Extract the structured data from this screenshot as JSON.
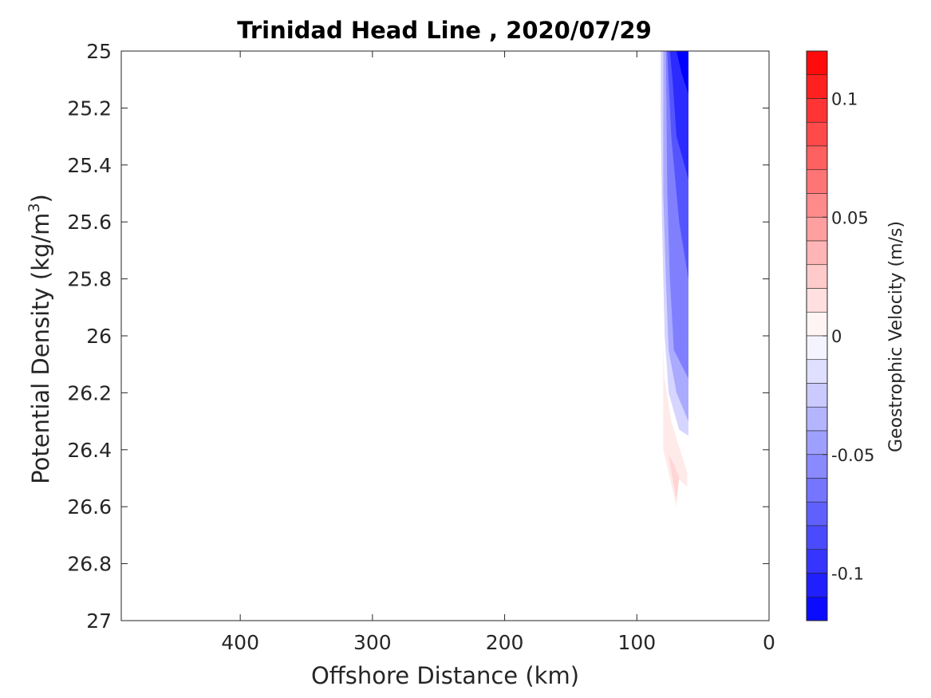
{
  "chart_data": {
    "type": "contour",
    "title": "Trinidad Head Line , 2020/07/29",
    "xlabel": "Offshore Distance (km)",
    "ylabel": "Potential Density (kg/m",
    "ylabel_sup": "3",
    "ylabel_close": ")",
    "xlim": [
      490,
      0
    ],
    "ylim": [
      25,
      27
    ],
    "x_reversed": true,
    "y_reversed": true,
    "xticks": [
      400,
      300,
      200,
      100,
      0
    ],
    "yticks": [
      25,
      25.2,
      25.4,
      25.6,
      25.8,
      26,
      26.2,
      26.4,
      26.6,
      26.8,
      27
    ],
    "xtick_labels": [
      "400",
      "300",
      "200",
      "100",
      "0"
    ],
    "ytick_labels": [
      "25",
      "25.2",
      "25.4",
      "25.6",
      "25.8",
      "26",
      "26.2",
      "26.4",
      "26.6",
      "26.8",
      "27"
    ],
    "colorbar": {
      "label": "Geostrophic Velocity (m/s)",
      "range": [
        -0.12,
        0.12
      ],
      "levels": 24,
      "ticks": [
        0.1,
        0.05,
        0,
        -0.05,
        -0.1
      ],
      "tick_labels": [
        "0.1",
        "0.05",
        "0",
        "-0.05",
        "-0.1"
      ],
      "colors": {
        "negative": "#0000ff",
        "zero": "#ffffff",
        "positive": "#ff0000"
      }
    },
    "contour_regions": [
      {
        "velocity": -0.02,
        "polygon": [
          [
            82,
            25
          ],
          [
            61,
            25
          ],
          [
            61,
            26.35
          ],
          [
            68,
            26.33
          ],
          [
            76,
            26.2
          ],
          [
            79,
            26
          ],
          [
            81,
            25.6
          ],
          [
            82,
            25.2
          ]
        ]
      },
      {
        "velocity": -0.04,
        "polygon": [
          [
            80,
            25
          ],
          [
            61,
            25
          ],
          [
            61,
            26.3
          ],
          [
            70,
            26.2
          ],
          [
            76,
            26.05
          ],
          [
            78,
            25.8
          ],
          [
            80,
            25.5
          ]
        ]
      },
      {
        "velocity": -0.06,
        "polygon": [
          [
            78,
            25
          ],
          [
            61,
            25
          ],
          [
            61,
            26.15
          ],
          [
            72,
            26.05
          ],
          [
            75,
            25.8
          ],
          [
            77,
            25.5
          ]
        ]
      },
      {
        "velocity": -0.08,
        "polygon": [
          [
            77,
            25
          ],
          [
            61,
            25
          ],
          [
            61,
            25.8
          ],
          [
            68,
            25.6
          ],
          [
            74,
            25.3
          ]
        ]
      },
      {
        "velocity": -0.1,
        "polygon": [
          [
            75,
            25
          ],
          [
            61,
            25
          ],
          [
            61,
            25.45
          ],
          [
            70,
            25.3
          ],
          [
            73,
            25.1
          ]
        ]
      },
      {
        "velocity": -0.12,
        "polygon": [
          [
            70,
            25
          ],
          [
            61,
            25
          ],
          [
            61,
            25.15
          ],
          [
            66,
            25.08
          ]
        ]
      },
      {
        "velocity": 0.01,
        "polygon": [
          [
            80,
            26.03
          ],
          [
            80,
            26.4
          ],
          [
            70,
            26.6
          ],
          [
            69,
            26.5
          ],
          [
            62,
            26.53
          ],
          [
            62,
            26.48
          ],
          [
            74,
            26.3
          ],
          [
            79,
            26.15
          ]
        ]
      },
      {
        "velocity": 0.02,
        "polygon": [
          [
            76,
            26.42
          ],
          [
            70,
            26.58
          ],
          [
            68,
            26.5
          ],
          [
            72,
            26.45
          ]
        ]
      }
    ]
  }
}
